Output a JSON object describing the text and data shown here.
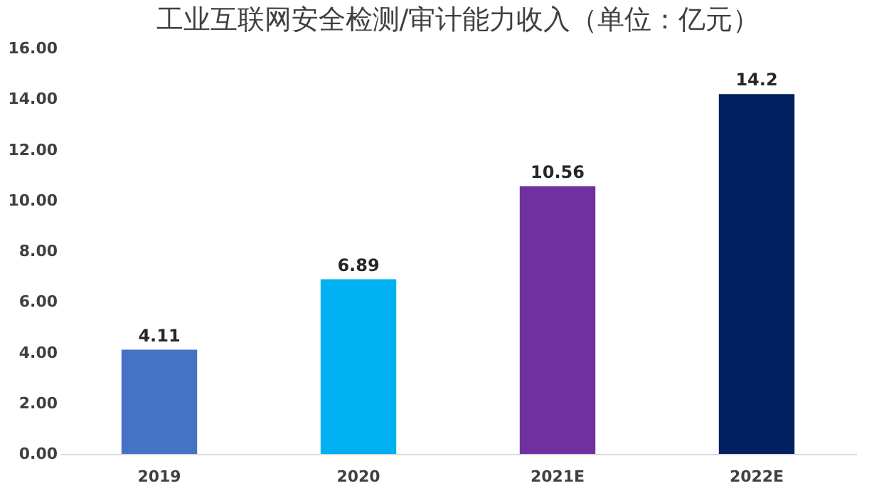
{
  "chart_data": {
    "type": "bar",
    "title": "工业互联网安全检测/审计能力收入（单位：亿元）",
    "categories": [
      "2019",
      "2020",
      "2021E",
      "2022E"
    ],
    "values": [
      4.11,
      6.89,
      10.56,
      14.2
    ],
    "colors": [
      "#4472c4",
      "#00b0f0",
      "#7030a0",
      "#002060"
    ],
    "ylim": [
      0,
      16
    ],
    "yticks": [
      {
        "value": 0,
        "label": "0.00"
      },
      {
        "value": 2,
        "label": "2.00"
      },
      {
        "value": 4,
        "label": "4.00"
      },
      {
        "value": 6,
        "label": "6.00"
      },
      {
        "value": 8,
        "label": "8.00"
      },
      {
        "value": 10,
        "label": "10.00"
      },
      {
        "value": 12,
        "label": "12.00"
      },
      {
        "value": 14,
        "label": "14.00"
      },
      {
        "value": 16,
        "label": "16.00"
      }
    ],
    "data_labels": true,
    "grid": false
  }
}
